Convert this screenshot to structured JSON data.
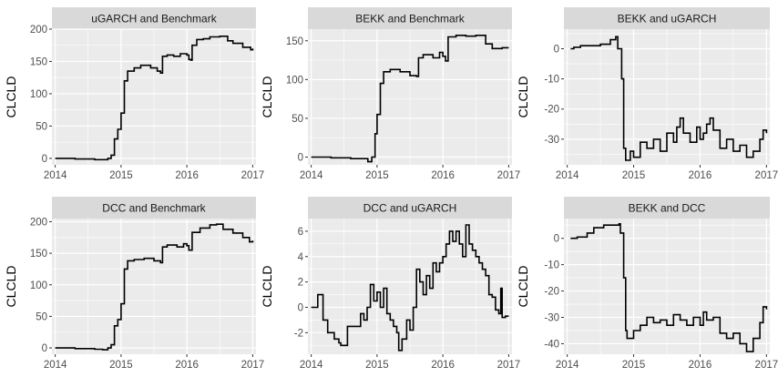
{
  "chart_data": [
    {
      "type": "line",
      "title": "uGARCH and Benchmark",
      "ylabel": "CLCLD",
      "xlabel": "",
      "xlim": [
        2013.95,
        2017.05
      ],
      "ylim": [
        -10,
        200
      ],
      "xticks": [
        2014,
        2015,
        2016,
        2017
      ],
      "xtick_labels": [
        "2014",
        "2015",
        "2016",
        "2017"
      ],
      "yticks": [
        0,
        50,
        100,
        150,
        200
      ],
      "ytick_labels": [
        "0",
        "50",
        "100",
        "150",
        "200"
      ],
      "series": [
        {
          "name": "uGARCH and Benchmark",
          "points": [
            [
              2014.0,
              0
            ],
            [
              2014.3,
              -1
            ],
            [
              2014.6,
              -2
            ],
            [
              2014.72,
              -2
            ],
            [
              2014.8,
              0
            ],
            [
              2014.85,
              5
            ],
            [
              2014.9,
              30
            ],
            [
              2014.95,
              45
            ],
            [
              2015.0,
              70
            ],
            [
              2015.05,
              120
            ],
            [
              2015.1,
              135
            ],
            [
              2015.2,
              140
            ],
            [
              2015.3,
              144
            ],
            [
              2015.45,
              140
            ],
            [
              2015.55,
              135
            ],
            [
              2015.6,
              132
            ],
            [
              2015.63,
              158
            ],
            [
              2015.7,
              160
            ],
            [
              2015.8,
              158
            ],
            [
              2015.9,
              162
            ],
            [
              2016.0,
              160
            ],
            [
              2016.03,
              153
            ],
            [
              2016.06,
              152
            ],
            [
              2016.08,
              175
            ],
            [
              2016.15,
              184
            ],
            [
              2016.25,
              185
            ],
            [
              2016.35,
              188
            ],
            [
              2016.5,
              189
            ],
            [
              2016.62,
              182
            ],
            [
              2016.7,
              178
            ],
            [
              2016.85,
              172
            ],
            [
              2016.97,
              168
            ],
            [
              2017.0,
              170
            ]
          ]
        }
      ]
    },
    {
      "type": "line",
      "title": "BEKK and Benchmark",
      "ylabel": "CLCLD",
      "xlabel": "",
      "xlim": [
        2013.95,
        2017.05
      ],
      "ylim": [
        -10,
        165
      ],
      "xticks": [
        2014,
        2015,
        2016,
        2017
      ],
      "xtick_labels": [
        "2014",
        "2015",
        "2016",
        "2017"
      ],
      "yticks": [
        0,
        50,
        100,
        150
      ],
      "ytick_labels": [
        "0",
        "50",
        "100",
        "150"
      ],
      "series": [
        {
          "name": "BEKK and Benchmark",
          "points": [
            [
              2014.0,
              0
            ],
            [
              2014.3,
              -1
            ],
            [
              2014.6,
              -2
            ],
            [
              2014.78,
              -2
            ],
            [
              2014.86,
              -6
            ],
            [
              2014.92,
              0
            ],
            [
              2014.97,
              30
            ],
            [
              2015.0,
              55
            ],
            [
              2015.05,
              95
            ],
            [
              2015.1,
              110
            ],
            [
              2015.2,
              113
            ],
            [
              2015.35,
              110
            ],
            [
              2015.5,
              105
            ],
            [
              2015.6,
              104
            ],
            [
              2015.63,
              128
            ],
            [
              2015.7,
              132
            ],
            [
              2015.85,
              128
            ],
            [
              2015.95,
              135
            ],
            [
              2016.0,
              130
            ],
            [
              2016.04,
              124
            ],
            [
              2016.08,
              155
            ],
            [
              2016.2,
              157
            ],
            [
              2016.35,
              156
            ],
            [
              2016.5,
              157
            ],
            [
              2016.65,
              146
            ],
            [
              2016.75,
              140
            ],
            [
              2016.9,
              141
            ],
            [
              2017.0,
              141
            ]
          ]
        }
      ]
    },
    {
      "type": "line",
      "title": "BEKK and uGARCH",
      "ylabel": "CLCLD",
      "xlabel": "",
      "xlim": [
        2013.95,
        2017.05
      ],
      "ylim": [
        -38.5,
        6.5
      ],
      "xticks": [
        2014,
        2015,
        2016,
        2017
      ],
      "xtick_labels": [
        "2014",
        "2015",
        "2016",
        "2017"
      ],
      "yticks": [
        -30,
        -20,
        -10,
        0
      ],
      "ytick_labels": [
        "-30",
        "-20",
        "-10",
        "0"
      ],
      "series": [
        {
          "name": "BEKK and uGARCH",
          "points": [
            [
              2014.05,
              0
            ],
            [
              2014.1,
              0.5
            ],
            [
              2014.2,
              1
            ],
            [
              2014.35,
              1
            ],
            [
              2014.5,
              1.5
            ],
            [
              2014.65,
              3
            ],
            [
              2014.73,
              4
            ],
            [
              2014.76,
              0
            ],
            [
              2014.82,
              -10
            ],
            [
              2014.85,
              -33
            ],
            [
              2014.88,
              -37
            ],
            [
              2014.95,
              -34
            ],
            [
              2015.0,
              -36
            ],
            [
              2015.1,
              -31
            ],
            [
              2015.2,
              -33
            ],
            [
              2015.3,
              -30
            ],
            [
              2015.4,
              -34
            ],
            [
              2015.5,
              -28
            ],
            [
              2015.6,
              -31
            ],
            [
              2015.65,
              -26
            ],
            [
              2015.7,
              -23
            ],
            [
              2015.75,
              -28
            ],
            [
              2015.85,
              -31
            ],
            [
              2015.95,
              -26
            ],
            [
              2016.0,
              -30
            ],
            [
              2016.05,
              -28
            ],
            [
              2016.1,
              -25
            ],
            [
              2016.15,
              -23
            ],
            [
              2016.2,
              -27
            ],
            [
              2016.3,
              -33
            ],
            [
              2016.4,
              -30
            ],
            [
              2016.5,
              -34
            ],
            [
              2016.6,
              -32
            ],
            [
              2016.7,
              -36
            ],
            [
              2016.8,
              -34
            ],
            [
              2016.9,
              -30
            ],
            [
              2016.95,
              -27
            ],
            [
              2017.0,
              -28
            ]
          ]
        }
      ]
    },
    {
      "type": "line",
      "title": "DCC and Benchmark",
      "ylabel": "CLCLD",
      "xlabel": "",
      "xlim": [
        2013.95,
        2017.05
      ],
      "ylim": [
        -10,
        205
      ],
      "xticks": [
        2014,
        2015,
        2016,
        2017
      ],
      "xtick_labels": [
        "2014",
        "2015",
        "2016",
        "2017"
      ],
      "yticks": [
        0,
        50,
        100,
        150,
        200
      ],
      "ytick_labels": [
        "0",
        "50",
        "100",
        "150",
        "200"
      ],
      "series": [
        {
          "name": "DCC and Benchmark",
          "points": [
            [
              2014.0,
              0
            ],
            [
              2014.3,
              -1
            ],
            [
              2014.6,
              -2
            ],
            [
              2014.72,
              -3
            ],
            [
              2014.8,
              0
            ],
            [
              2014.85,
              5
            ],
            [
              2014.9,
              35
            ],
            [
              2014.95,
              45
            ],
            [
              2015.0,
              70
            ],
            [
              2015.05,
              125
            ],
            [
              2015.1,
              138
            ],
            [
              2015.2,
              140
            ],
            [
              2015.35,
              142
            ],
            [
              2015.5,
              138
            ],
            [
              2015.6,
              135
            ],
            [
              2015.63,
              160
            ],
            [
              2015.7,
              163
            ],
            [
              2015.85,
              160
            ],
            [
              2015.95,
              165
            ],
            [
              2016.0,
              162
            ],
            [
              2016.03,
              155
            ],
            [
              2016.06,
              155
            ],
            [
              2016.08,
              183
            ],
            [
              2016.2,
              190
            ],
            [
              2016.35,
              195
            ],
            [
              2016.45,
              196
            ],
            [
              2016.55,
              188
            ],
            [
              2016.7,
              182
            ],
            [
              2016.85,
              175
            ],
            [
              2016.95,
              168
            ],
            [
              2017.0,
              170
            ]
          ]
        }
      ]
    },
    {
      "type": "line",
      "title": "DCC and uGARCH",
      "ylabel": "CLCLD",
      "xlabel": "",
      "xlim": [
        2013.95,
        2017.05
      ],
      "ylim": [
        -3.7,
        7
      ],
      "xticks": [
        2014,
        2015,
        2016,
        2017
      ],
      "xtick_labels": [
        "2014",
        "2015",
        "2016",
        "2017"
      ],
      "yticks": [
        -2,
        0,
        2,
        4,
        6
      ],
      "ytick_labels": [
        "-2",
        "0",
        "2",
        "4",
        "6"
      ],
      "series": [
        {
          "name": "DCC and uGARCH",
          "points": [
            [
              2014.0,
              0
            ],
            [
              2014.08,
              0
            ],
            [
              2014.1,
              1
            ],
            [
              2014.15,
              1
            ],
            [
              2014.18,
              -1
            ],
            [
              2014.25,
              -2
            ],
            [
              2014.35,
              -2.5
            ],
            [
              2014.42,
              -2.8
            ],
            [
              2014.45,
              -3
            ],
            [
              2014.5,
              -3
            ],
            [
              2014.55,
              -1.5
            ],
            [
              2014.65,
              -1.5
            ],
            [
              2014.75,
              -0.5
            ],
            [
              2014.8,
              -1
            ],
            [
              2014.85,
              0
            ],
            [
              2014.9,
              1.8
            ],
            [
              2014.95,
              0.5
            ],
            [
              2015.0,
              1.2
            ],
            [
              2015.05,
              0
            ],
            [
              2015.1,
              1.5
            ],
            [
              2015.15,
              -0.5
            ],
            [
              2015.2,
              -1
            ],
            [
              2015.25,
              -1.5
            ],
            [
              2015.3,
              -2
            ],
            [
              2015.33,
              -3.4
            ],
            [
              2015.38,
              -2.5
            ],
            [
              2015.45,
              -1
            ],
            [
              2015.5,
              -1.8
            ],
            [
              2015.55,
              0
            ],
            [
              2015.6,
              3
            ],
            [
              2015.65,
              2
            ],
            [
              2015.7,
              1
            ],
            [
              2015.75,
              2.5
            ],
            [
              2015.8,
              1.5
            ],
            [
              2015.85,
              3.5
            ],
            [
              2015.9,
              2.8
            ],
            [
              2015.95,
              3.5
            ],
            [
              2016.0,
              4
            ],
            [
              2016.05,
              5
            ],
            [
              2016.1,
              6
            ],
            [
              2016.15,
              5.2
            ],
            [
              2016.2,
              6
            ],
            [
              2016.25,
              5
            ],
            [
              2016.3,
              4
            ],
            [
              2016.35,
              6.5
            ],
            [
              2016.4,
              5
            ],
            [
              2016.45,
              4.5
            ],
            [
              2016.5,
              4
            ],
            [
              2016.55,
              3.5
            ],
            [
              2016.6,
              3
            ],
            [
              2016.65,
              2.5
            ],
            [
              2016.7,
              1
            ],
            [
              2016.75,
              0.8
            ],
            [
              2016.8,
              -0.2
            ],
            [
              2016.85,
              -0.5
            ],
            [
              2016.88,
              1.5
            ],
            [
              2016.9,
              -0.8
            ],
            [
              2016.95,
              -0.7
            ],
            [
              2017.0,
              -0.7
            ]
          ]
        }
      ]
    },
    {
      "type": "line",
      "title": "BEKK and DCC",
      "ylabel": "CLCLD",
      "xlabel": "",
      "xlim": [
        2013.95,
        2017.05
      ],
      "ylim": [
        -44,
        7.5
      ],
      "xticks": [
        2014,
        2015,
        2016,
        2017
      ],
      "xtick_labels": [
        "2014",
        "2015",
        "2016",
        "2017"
      ],
      "yticks": [
        -40,
        -30,
        -20,
        -10,
        0
      ],
      "ytick_labels": [
        "-40",
        "-30",
        "-20",
        "-10",
        "0"
      ],
      "series": [
        {
          "name": "BEKK and DCC",
          "points": [
            [
              2014.05,
              0
            ],
            [
              2014.15,
              0.5
            ],
            [
              2014.3,
              2
            ],
            [
              2014.4,
              4
            ],
            [
              2014.55,
              5
            ],
            [
              2014.7,
              5
            ],
            [
              2014.78,
              5.5
            ],
            [
              2014.8,
              2
            ],
            [
              2014.85,
              -15
            ],
            [
              2014.88,
              -35
            ],
            [
              2014.9,
              -38
            ],
            [
              2015.0,
              -35
            ],
            [
              2015.1,
              -33
            ],
            [
              2015.2,
              -30
            ],
            [
              2015.3,
              -32
            ],
            [
              2015.4,
              -31
            ],
            [
              2015.5,
              -33
            ],
            [
              2015.6,
              -29
            ],
            [
              2015.7,
              -31
            ],
            [
              2015.8,
              -33
            ],
            [
              2015.9,
              -30
            ],
            [
              2016.0,
              -33
            ],
            [
              2016.05,
              -28
            ],
            [
              2016.1,
              -31
            ],
            [
              2016.2,
              -30
            ],
            [
              2016.3,
              -36
            ],
            [
              2016.4,
              -38
            ],
            [
              2016.5,
              -36
            ],
            [
              2016.6,
              -40
            ],
            [
              2016.7,
              -43
            ],
            [
              2016.8,
              -38
            ],
            [
              2016.9,
              -32
            ],
            [
              2016.95,
              -26
            ],
            [
              2017.0,
              -27
            ]
          ]
        }
      ]
    }
  ],
  "theme": {
    "panel_bg": "#ebebeb",
    "strip_bg": "#d9d9d9",
    "grid_color": "#ffffff",
    "line_color": "#000000",
    "tick_color": "#333333"
  }
}
